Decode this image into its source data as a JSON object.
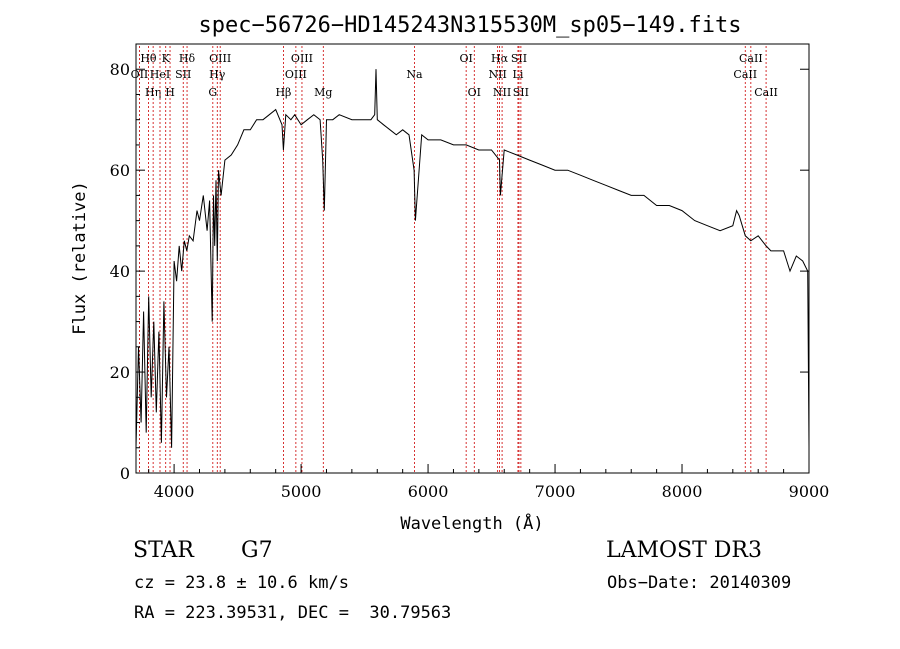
{
  "chart_data": {
    "type": "line",
    "title": "spec−56726−HD145243N315530M_sp05−149.fits",
    "xlabel": "Wavelength (Å)",
    "ylabel": "Flux (relative)",
    "xlim": [
      3700,
      9000
    ],
    "ylim": [
      0,
      85
    ],
    "xticks": [
      4000,
      5000,
      6000,
      7000,
      8000,
      9000
    ],
    "yticks": [
      0,
      20,
      40,
      60,
      80
    ],
    "grid": false,
    "series": [
      {
        "color": "#000000",
        "x": [
          3700,
          3720,
          3740,
          3760,
          3780,
          3800,
          3820,
          3840,
          3860,
          3880,
          3900,
          3920,
          3940,
          3960,
          3980,
          4000,
          4020,
          4040,
          4060,
          4080,
          4100,
          4120,
          4150,
          4180,
          4200,
          4230,
          4260,
          4280,
          4300,
          4310,
          4320,
          4330,
          4340,
          4350,
          4370,
          4400,
          4450,
          4500,
          4550,
          4600,
          4650,
          4700,
          4750,
          4800,
          4850,
          4861,
          4880,
          4920,
          4950,
          5000,
          5050,
          5100,
          5150,
          5170,
          5183,
          5200,
          5250,
          5300,
          5400,
          5500,
          5550,
          5580,
          5590,
          5600,
          5650,
          5700,
          5750,
          5800,
          5850,
          5890,
          5900,
          5950,
          6000,
          6100,
          6200,
          6300,
          6400,
          6500,
          6563,
          6570,
          6600,
          6700,
          6800,
          6900,
          7000,
          7100,
          7200,
          7300,
          7400,
          7500,
          7600,
          7700,
          7800,
          7900,
          8000,
          8100,
          8200,
          8300,
          8400,
          8430,
          8450,
          8498,
          8542,
          8600,
          8662,
          8700,
          8800,
          8850,
          8900,
          8950,
          8990,
          9000
        ],
        "y": [
          5,
          25,
          10,
          32,
          8,
          35,
          15,
          30,
          12,
          28,
          6,
          34,
          15,
          25,
          5,
          42,
          38,
          45,
          40,
          46,
          44,
          47,
          46,
          52,
          50,
          55,
          48,
          54,
          30,
          55,
          45,
          58,
          42,
          60,
          55,
          62,
          63,
          65,
          68,
          68,
          70,
          70,
          71,
          72,
          69,
          64,
          71,
          70,
          71,
          69,
          70,
          71,
          70,
          62,
          52,
          70,
          70,
          71,
          70,
          70,
          70,
          71,
          80,
          70,
          69,
          68,
          67,
          68,
          67,
          60,
          50,
          67,
          66,
          66,
          65,
          65,
          64,
          64,
          62,
          55,
          64,
          63,
          62,
          61,
          60,
          60,
          59,
          58,
          57,
          56,
          55,
          55,
          53,
          53,
          52,
          50,
          49,
          48,
          49,
          52,
          51,
          47,
          46,
          47,
          45,
          44,
          44,
          40,
          43,
          42,
          40,
          5
        ]
      }
    ]
  },
  "lines": [
    {
      "label": "Hθ",
      "wl": 3798,
      "row": 1
    },
    {
      "label": "OII",
      "wl": 3727,
      "row": 2
    },
    {
      "label": "Hη",
      "wl": 3835,
      "row": 3
    },
    {
      "label": "HeI",
      "wl": 3889,
      "row": 2
    },
    {
      "label": "K",
      "wl": 3934,
      "row": 1
    },
    {
      "label": "H",
      "wl": 3968,
      "row": 3
    },
    {
      "label": "SII",
      "wl": 4072,
      "row": 2
    },
    {
      "label": "Hδ",
      "wl": 4102,
      "row": 1
    },
    {
      "label": "OIII",
      "wl": 4363,
      "row": 1
    },
    {
      "label": "Hγ",
      "wl": 4340,
      "row": 2
    },
    {
      "label": "G",
      "wl": 4305,
      "row": 3
    },
    {
      "label": "Hβ",
      "wl": 4861,
      "row": 3
    },
    {
      "label": "OIII",
      "wl": 4959,
      "row": 2
    },
    {
      "label": "OIII",
      "wl": 5007,
      "row": 1
    },
    {
      "label": "Mg",
      "wl": 5175,
      "row": 3
    },
    {
      "label": "Na",
      "wl": 5893,
      "row": 2
    },
    {
      "label": "OI",
      "wl": 6300,
      "row": 1
    },
    {
      "label": "OI",
      "wl": 6364,
      "row": 3
    },
    {
      "label": "Hα",
      "wl": 6563,
      "row": 1
    },
    {
      "label": "NII",
      "wl": 6548,
      "row": 2
    },
    {
      "label": "NII",
      "wl": 6583,
      "row": 3
    },
    {
      "label": "SII",
      "wl": 6716,
      "row": 1
    },
    {
      "label": "Li",
      "wl": 6708,
      "row": 2
    },
    {
      "label": "SII",
      "wl": 6731,
      "row": 3
    },
    {
      "label": "CaII",
      "wl": 8542,
      "row": 1
    },
    {
      "label": "CaII",
      "wl": 8498,
      "row": 2
    },
    {
      "label": "CaII",
      "wl": 8662,
      "row": 3
    }
  ],
  "footer": {
    "object_type": "STAR",
    "subclass": "G7",
    "survey": "LAMOST DR3",
    "cz": "cz = 23.8 ± 10.6 km/s",
    "obs_date": "Obs−Date: 20140309",
    "radec": "RA = 223.39531, DEC =  30.79563"
  },
  "colors": {
    "line_marker": "#cc0000",
    "spectrum": "#000000"
  }
}
